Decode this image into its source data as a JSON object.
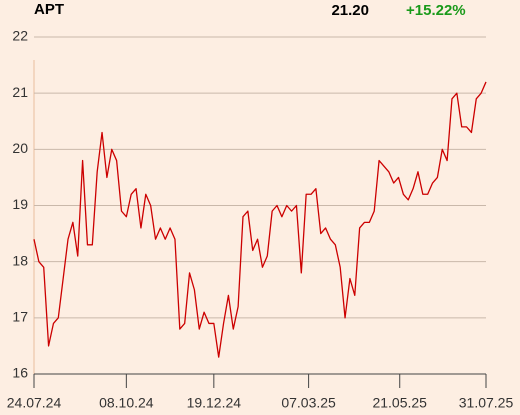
{
  "header": {
    "symbol": "APT",
    "price": "21.20",
    "change": "+15.22%"
  },
  "chart_data": {
    "type": "line",
    "grid": true,
    "x": [
      "2024-07-24",
      "2024-07-28",
      "2024-08-01",
      "2024-08-05",
      "2024-08-09",
      "2024-08-13",
      "2024-08-17",
      "2024-08-21",
      "2024-08-25",
      "2024-08-29",
      "2024-09-02",
      "2024-09-06",
      "2024-09-10",
      "2024-09-14",
      "2024-09-18",
      "2024-09-22",
      "2024-09-26",
      "2024-09-30",
      "2024-10-04",
      "2024-10-08",
      "2024-10-12",
      "2024-10-16",
      "2024-10-20",
      "2024-10-24",
      "2024-10-28",
      "2024-11-01",
      "2024-11-05",
      "2024-11-09",
      "2024-11-13",
      "2024-11-17",
      "2024-11-21",
      "2024-11-25",
      "2024-11-29",
      "2024-12-03",
      "2024-12-07",
      "2024-12-11",
      "2024-12-15",
      "2024-12-19",
      "2024-12-23",
      "2024-12-27",
      "2024-12-31",
      "2025-01-04",
      "2025-01-08",
      "2025-01-12",
      "2025-01-16",
      "2025-01-20",
      "2025-01-24",
      "2025-01-28",
      "2025-02-01",
      "2025-02-05",
      "2025-02-09",
      "2025-02-13",
      "2025-02-17",
      "2025-02-21",
      "2025-02-25",
      "2025-03-01",
      "2025-03-05",
      "2025-03-09",
      "2025-03-13",
      "2025-03-17",
      "2025-03-21",
      "2025-03-25",
      "2025-03-29",
      "2025-04-02",
      "2025-04-06",
      "2025-04-10",
      "2025-04-14",
      "2025-04-18",
      "2025-04-22",
      "2025-04-26",
      "2025-04-30",
      "2025-05-04",
      "2025-05-08",
      "2025-05-12",
      "2025-05-16",
      "2025-05-20",
      "2025-05-24",
      "2025-05-28",
      "2025-06-01",
      "2025-06-05",
      "2025-06-09",
      "2025-06-13",
      "2025-06-17",
      "2025-06-21",
      "2025-06-25",
      "2025-06-29",
      "2025-07-03",
      "2025-07-07",
      "2025-07-11",
      "2025-07-15",
      "2025-07-19",
      "2025-07-23",
      "2025-07-27",
      "2025-07-31"
    ],
    "series": [
      {
        "name": "APT",
        "color": "#cc0000",
        "values": [
          18.4,
          18.0,
          17.9,
          16.5,
          16.9,
          17.0,
          17.7,
          18.4,
          18.7,
          18.1,
          19.8,
          18.3,
          18.3,
          19.6,
          20.3,
          19.5,
          20.0,
          19.8,
          18.9,
          18.8,
          19.2,
          19.3,
          18.6,
          19.2,
          19.0,
          18.4,
          18.6,
          18.4,
          18.6,
          18.4,
          16.8,
          16.9,
          17.8,
          17.5,
          16.8,
          17.1,
          16.9,
          16.9,
          16.3,
          16.9,
          17.4,
          16.8,
          17.2,
          18.8,
          18.9,
          18.2,
          18.4,
          17.9,
          18.1,
          18.9,
          19.0,
          18.8,
          19.0,
          18.9,
          19.0,
          17.8,
          19.2,
          19.2,
          19.3,
          18.5,
          18.6,
          18.4,
          18.3,
          17.9,
          17.0,
          17.7,
          17.4,
          18.6,
          18.7,
          18.7,
          18.9,
          19.8,
          19.7,
          19.6,
          19.4,
          19.5,
          19.2,
          19.1,
          19.3,
          19.6,
          19.2,
          19.2,
          19.4,
          19.5,
          20.0,
          19.8,
          20.9,
          21.0,
          20.4,
          20.4,
          20.3,
          20.9,
          21.0,
          21.2
        ]
      }
    ],
    "xlim": [
      "2024-07-24",
      "2025-07-31"
    ],
    "xticks": [
      {
        "value": "2024-07-24",
        "label": "24.07.24"
      },
      {
        "value": "2024-10-08",
        "label": "08.10.24"
      },
      {
        "value": "2024-12-19",
        "label": "19.12.24"
      },
      {
        "value": "2025-03-07",
        "label": "07.03.25"
      },
      {
        "value": "2025-05-21",
        "label": "21.05.25"
      },
      {
        "value": "2025-07-31",
        "label": "31.07.25"
      }
    ],
    "ylim": [
      16,
      22
    ],
    "yticks": [
      16,
      17,
      18,
      19,
      20,
      21,
      22
    ]
  }
}
